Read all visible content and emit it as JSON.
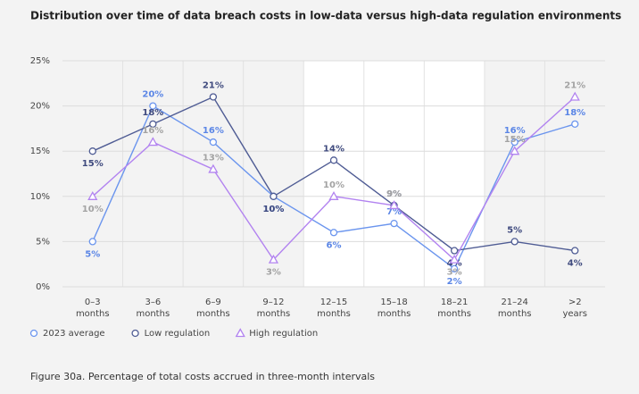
{
  "chart_data": {
    "type": "line",
    "title": "Distribution over time of data breach costs in low-data versus high-data regulation environments",
    "caption": "Figure 30a. Percentage of total costs accrued in three-month intervals",
    "categories": [
      "0–3 months",
      "3–6 months",
      "6–9 months",
      "9–12 months",
      "12–15 months",
      "15–18 months",
      "18–21 months",
      "21–24 months",
      ">2 years"
    ],
    "ylim": [
      0,
      25
    ],
    "yticks": [
      {
        "value": 0,
        "label": "0%"
      },
      {
        "value": 5,
        "label": "5%"
      },
      {
        "value": 10,
        "label": "10%"
      },
      {
        "value": 15,
        "label": "15%"
      },
      {
        "value": 20,
        "label": "20%"
      },
      {
        "value": 25,
        "label": "25%"
      }
    ],
    "grid": true,
    "series": [
      {
        "name": "2023 average",
        "color": "#6b95ee",
        "label_color": "#5b86e6",
        "marker": "circle",
        "values": [
          5,
          20,
          16,
          10,
          6,
          7,
          2,
          16,
          18
        ],
        "value_labels": [
          "5%",
          "20%",
          "16%",
          "10%",
          "6%",
          "7%",
          "2%",
          "16%",
          "18%"
        ]
      },
      {
        "name": "Low regulation",
        "color": "#4f5c94",
        "label_color": "#3f4a7e",
        "marker": "circle",
        "values": [
          15,
          18,
          21,
          10,
          14,
          9,
          4,
          5,
          4
        ],
        "value_labels": [
          "15%",
          "18%",
          "21%",
          "10%",
          "14%",
          "9%",
          "4%",
          "5%",
          "4%"
        ]
      },
      {
        "name": "High regulation",
        "color": "#b283f0",
        "label_color": "#a3a3a3",
        "marker": "triangle",
        "values": [
          10,
          16,
          13,
          3,
          10,
          9,
          3,
          15,
          21
        ],
        "value_labels": [
          "10%",
          "16%",
          "13%",
          "3%",
          "10%",
          "9%",
          "3%",
          "15%",
          "21%"
        ]
      }
    ]
  }
}
